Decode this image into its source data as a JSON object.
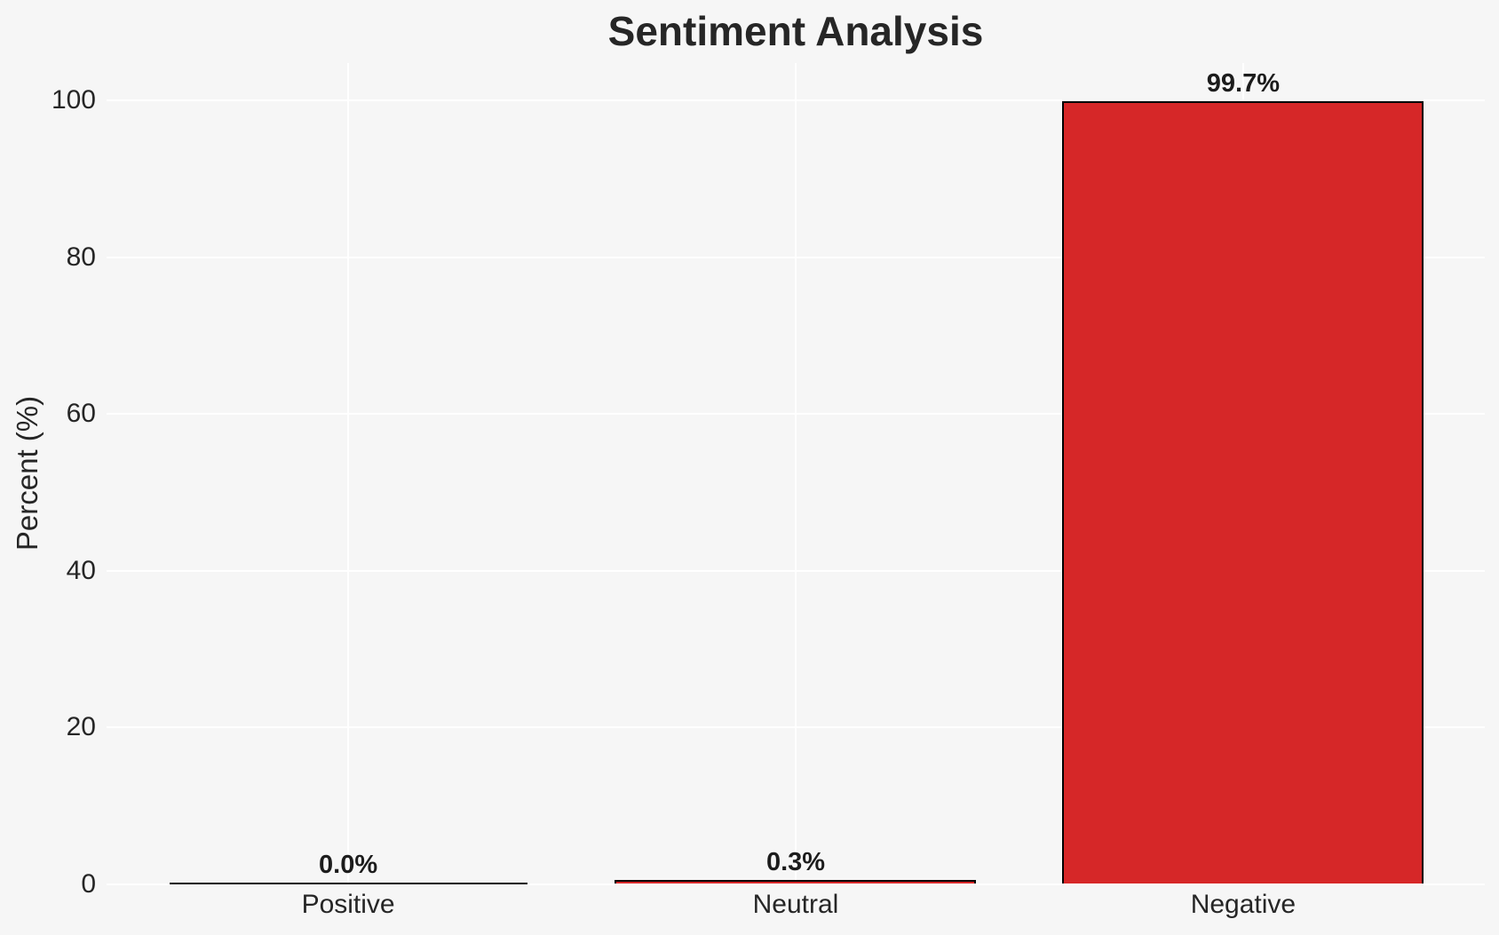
{
  "figure": {
    "background_color": "#f6f6f6",
    "grid_color": "#ffffff",
    "text_color": "#262626",
    "value_label_color": "#1c1c1c"
  },
  "chart_data": {
    "type": "bar",
    "title": "Sentiment Analysis",
    "xlabel": "",
    "ylabel": "Percent (%)",
    "categories": [
      "Positive",
      "Neutral",
      "Negative"
    ],
    "values": [
      0.0,
      0.3,
      99.7
    ],
    "value_labels": [
      "0.0%",
      "0.3%",
      "99.7%"
    ],
    "bar_color": "#d62728",
    "bar_edge_color": "#000000",
    "yticks": [
      0,
      20,
      40,
      60,
      80,
      100
    ],
    "ylim": [
      0,
      104.8
    ],
    "xlim": [
      -0.54,
      2.54
    ],
    "bar_width": 0.8,
    "grid": true,
    "legend": false
  }
}
